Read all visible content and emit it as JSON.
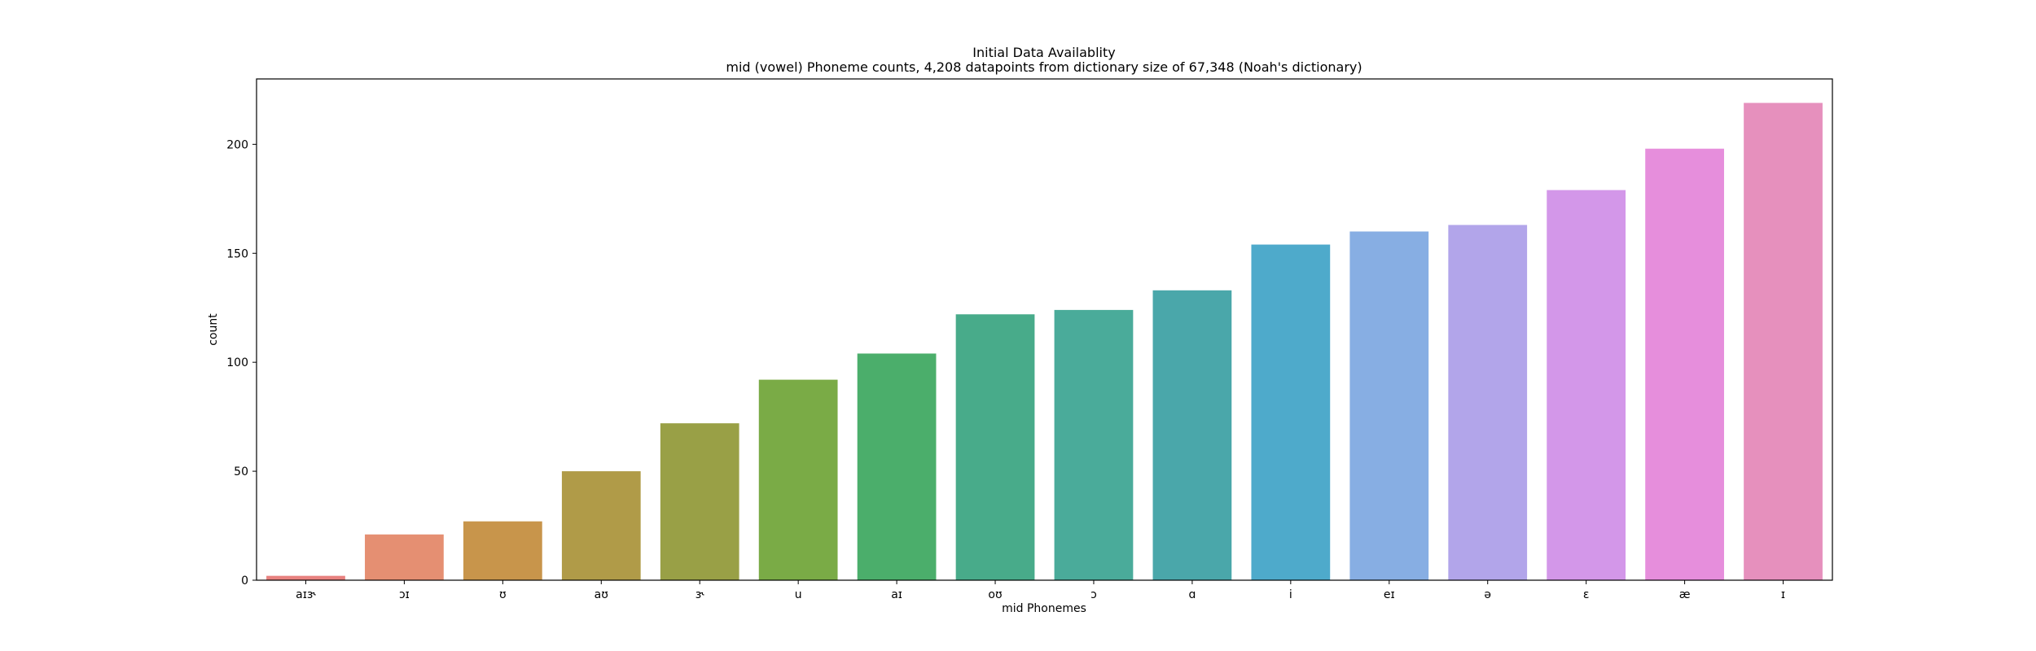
{
  "chart_data": {
    "type": "bar",
    "title": "Initial Data Availablity",
    "subtitle": "mid (vowel) Phoneme counts, 4,208 datapoints from dictionary size of 67,348 (Noah's dictionary)",
    "xlabel": "mid Phonemes",
    "ylabel": "count",
    "ylim": [
      0,
      230
    ],
    "yticks": [
      0,
      50,
      100,
      150,
      200
    ],
    "grid": false,
    "categories": [
      "aɪɝ",
      "ɔɪ",
      "ʊ",
      "aʊ",
      "ɝ",
      "u",
      "aɪ",
      "oʊ",
      "ɔ",
      "ɑ",
      "i",
      "eɪ",
      "ə",
      "ɛ",
      "æ",
      "ɪ"
    ],
    "values": [
      2,
      21,
      27,
      50,
      72,
      92,
      104,
      122,
      124,
      133,
      154,
      160,
      163,
      179,
      198,
      219
    ],
    "colors": [
      "#e8817f",
      "#e58f72",
      "#c8954b",
      "#b09b48",
      "#99a046",
      "#7aab46",
      "#4bae6b",
      "#48ab8a",
      "#4aab9a",
      "#4aa7aa",
      "#4eaacb",
      "#87aee3",
      "#b2a5ea",
      "#d397e9",
      "#e68edc",
      "#e690bd"
    ]
  }
}
